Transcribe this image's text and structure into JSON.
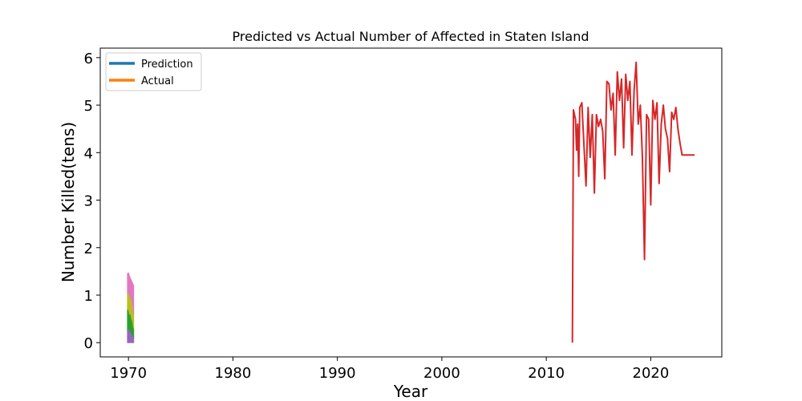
{
  "chart_data": {
    "type": "line",
    "title": "Predicted vs Actual Number of Affected in Staten Island",
    "xlabel": "Year",
    "ylabel": "Number Killed(tens)",
    "xlim": [
      1967.3,
      2026.8
    ],
    "ylim": [
      -0.3,
      6.2
    ],
    "xticks": [
      1970,
      1980,
      1990,
      2000,
      2010,
      2020
    ],
    "yticks": [
      0,
      1,
      2,
      3,
      4,
      5,
      6
    ],
    "grid": false,
    "legend": {
      "placement": "top-left",
      "entries": [
        {
          "label": "Prediction",
          "color": "#1f77b4"
        },
        {
          "label": "Actual",
          "color": "#ff7f0e"
        }
      ]
    },
    "stacked_area_near_1970": {
      "x_range": [
        1969.9,
        1970.5
      ],
      "layers": [
        {
          "color": "#9467bd",
          "top": [
            0.25,
            0.3,
            0.28,
            0.22,
            0.2,
            0.15,
            0.12
          ]
        },
        {
          "color": "#2ca02c",
          "top": [
            0.7,
            0.72,
            0.6,
            0.62,
            0.5,
            0.45,
            0.3
          ]
        },
        {
          "color": "#bcbd22",
          "top": [
            1.05,
            1.08,
            1.0,
            0.95,
            0.9,
            0.8,
            0.6
          ]
        },
        {
          "color": "#e377c2",
          "top": [
            1.45,
            1.47,
            1.4,
            1.35,
            1.3,
            1.25,
            1.2
          ]
        }
      ]
    },
    "series": [
      {
        "color": "#d62728",
        "x": [
          2012.5,
          2012.6,
          2012.8,
          2012.9,
          2013.0,
          2013.1,
          2013.2,
          2013.4,
          2013.5,
          2013.8,
          2014.0,
          2014.2,
          2014.4,
          2014.6,
          2014.8,
          2015.0,
          2015.2,
          2015.4,
          2015.6,
          2015.8,
          2016.0,
          2016.2,
          2016.4,
          2016.6,
          2016.8,
          2017.0,
          2017.2,
          2017.4,
          2017.6,
          2017.8,
          2018.0,
          2018.2,
          2018.4,
          2018.6,
          2018.8,
          2019.0,
          2019.2,
          2019.4,
          2019.6,
          2019.8,
          2020.0,
          2020.2,
          2020.4,
          2020.6,
          2020.8,
          2021.0,
          2021.2,
          2021.4,
          2021.6,
          2021.8,
          2022.0,
          2022.2,
          2022.4,
          2022.6,
          2022.8,
          2023.0,
          2023.2,
          2023.4,
          2023.6,
          2023.8,
          2024.0,
          2024.2
        ],
        "y": [
          0.0,
          4.9,
          4.7,
          4.05,
          4.6,
          3.5,
          4.95,
          5.05,
          4.6,
          3.3,
          4.95,
          3.9,
          4.8,
          3.15,
          4.8,
          4.55,
          4.7,
          4.45,
          3.45,
          5.5,
          5.45,
          4.9,
          5.25,
          3.95,
          5.7,
          5.1,
          5.55,
          4.1,
          5.65,
          5.1,
          5.5,
          3.95,
          5.3,
          5.9,
          4.6,
          5.0,
          3.9,
          1.75,
          4.8,
          4.7,
          2.9,
          5.1,
          4.7,
          5.05,
          3.35,
          4.6,
          5.0,
          4.5,
          4.3,
          3.6,
          4.85,
          4.7,
          4.95,
          4.5,
          4.2,
          3.95,
          3.95,
          3.95,
          3.95,
          3.95,
          3.95,
          3.95
        ]
      }
    ]
  }
}
